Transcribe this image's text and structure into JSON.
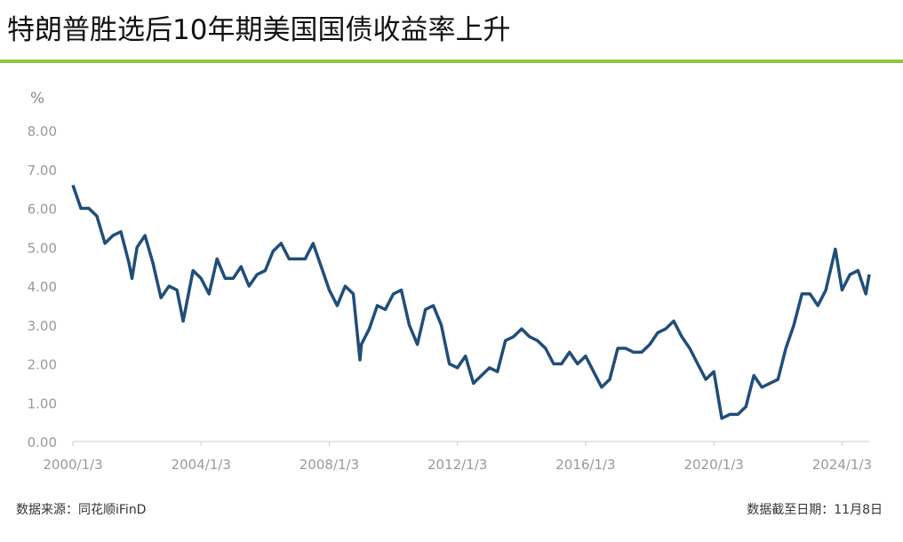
{
  "chart_data": {
    "type": "line",
    "title": "特朗普胜选后10年期美国国债收益率上升",
    "y_unit": "%",
    "source": "数据来源：同花顺iFinD",
    "cutoff": "数据截至日期：11月8日",
    "xlim": [
      "2000/1/3",
      "2024/11/8"
    ],
    "xticks": [
      "2000/1/3",
      "2004/1/3",
      "2008/1/3",
      "2012/1/3",
      "2016/1/3",
      "2020/1/3",
      "2024/1/3"
    ],
    "ylim": [
      0,
      8
    ],
    "yticks": [
      {
        "value": 0,
        "label": "0.00"
      },
      {
        "value": 1,
        "label": "1.00"
      },
      {
        "value": 2,
        "label": "2.00"
      },
      {
        "value": 3,
        "label": "3.00"
      },
      {
        "value": 4,
        "label": "4.00"
      },
      {
        "value": 5,
        "label": "5.00"
      },
      {
        "value": 6,
        "label": "6.00"
      },
      {
        "value": 7,
        "label": "7.00"
      },
      {
        "value": 8,
        "label": "8.00"
      }
    ],
    "series": [
      {
        "name": "10年期美国国债收益率",
        "color": "#1f4e79",
        "x": [
          "2000/1/3",
          "2000/4/3",
          "2000/7/3",
          "2000/10/3",
          "2001/1/3",
          "2001/4/3",
          "2001/7/3",
          "2001/10/3",
          "2001/11/7",
          "2002/1/3",
          "2002/4/3",
          "2002/7/3",
          "2002/10/3",
          "2003/1/3",
          "2003/4/3",
          "2003/6/13",
          "2003/10/3",
          "2004/1/3",
          "2004/4/3",
          "2004/7/3",
          "2004/10/3",
          "2005/1/3",
          "2005/4/3",
          "2005/7/3",
          "2005/10/3",
          "2006/1/3",
          "2006/4/3",
          "2006/7/3",
          "2006/10/3",
          "2007/1/3",
          "2007/4/3",
          "2007/7/3",
          "2007/10/3",
          "2008/1/3",
          "2008/4/3",
          "2008/7/3",
          "2008/10/3",
          "2008/12/18",
          "2009/1/3",
          "2009/4/3",
          "2009/7/3",
          "2009/10/3",
          "2010/1/3",
          "2010/4/3",
          "2010/7/3",
          "2010/10/3",
          "2011/1/3",
          "2011/4/3",
          "2011/7/3",
          "2011/10/3",
          "2012/1/3",
          "2012/4/3",
          "2012/7/3",
          "2012/10/3",
          "2013/1/3",
          "2013/4/3",
          "2013/7/3",
          "2013/10/3",
          "2014/1/3",
          "2014/4/3",
          "2014/7/3",
          "2014/10/3",
          "2015/1/3",
          "2015/4/3",
          "2015/7/3",
          "2015/10/3",
          "2016/1/3",
          "2016/4/3",
          "2016/7/3",
          "2016/10/3",
          "2017/1/3",
          "2017/4/3",
          "2017/7/3",
          "2017/10/3",
          "2018/1/3",
          "2018/4/3",
          "2018/7/3",
          "2018/10/3",
          "2019/1/3",
          "2019/4/3",
          "2019/7/3",
          "2019/10/3",
          "2020/1/3",
          "2020/4/3",
          "2020/7/3",
          "2020/10/3",
          "2021/1/3",
          "2021/4/3",
          "2021/7/3",
          "2021/10/3",
          "2022/1/3",
          "2022/4/3",
          "2022/7/3",
          "2022/10/3",
          "2023/1/3",
          "2023/4/3",
          "2023/7/3",
          "2023/10/19",
          "2024/1/3",
          "2024/4/3",
          "2024/7/3",
          "2024/10/1",
          "2024/11/8"
        ],
        "values": [
          6.6,
          6.0,
          6.0,
          5.8,
          5.1,
          5.3,
          5.4,
          4.6,
          4.2,
          5.0,
          5.3,
          4.6,
          3.7,
          4.0,
          3.9,
          3.1,
          4.4,
          4.2,
          3.8,
          4.7,
          4.2,
          4.2,
          4.5,
          4.0,
          4.3,
          4.4,
          4.9,
          5.1,
          4.7,
          4.7,
          4.7,
          5.1,
          4.5,
          3.9,
          3.5,
          4.0,
          3.8,
          2.1,
          2.5,
          2.9,
          3.5,
          3.4,
          3.8,
          3.9,
          3.0,
          2.5,
          3.4,
          3.5,
          3.0,
          2.0,
          1.9,
          2.2,
          1.5,
          1.7,
          1.9,
          1.8,
          2.6,
          2.7,
          2.9,
          2.7,
          2.6,
          2.4,
          2.0,
          2.0,
          2.3,
          2.0,
          2.2,
          1.8,
          1.4,
          1.6,
          2.4,
          2.4,
          2.3,
          2.3,
          2.5,
          2.8,
          2.9,
          3.1,
          2.7,
          2.4,
          2.0,
          1.6,
          1.8,
          0.6,
          0.7,
          0.7,
          0.9,
          1.7,
          1.4,
          1.5,
          1.6,
          2.4,
          3.0,
          3.8,
          3.8,
          3.5,
          3.9,
          4.95,
          3.9,
          4.3,
          4.4,
          3.8,
          4.3
        ]
      }
    ]
  }
}
